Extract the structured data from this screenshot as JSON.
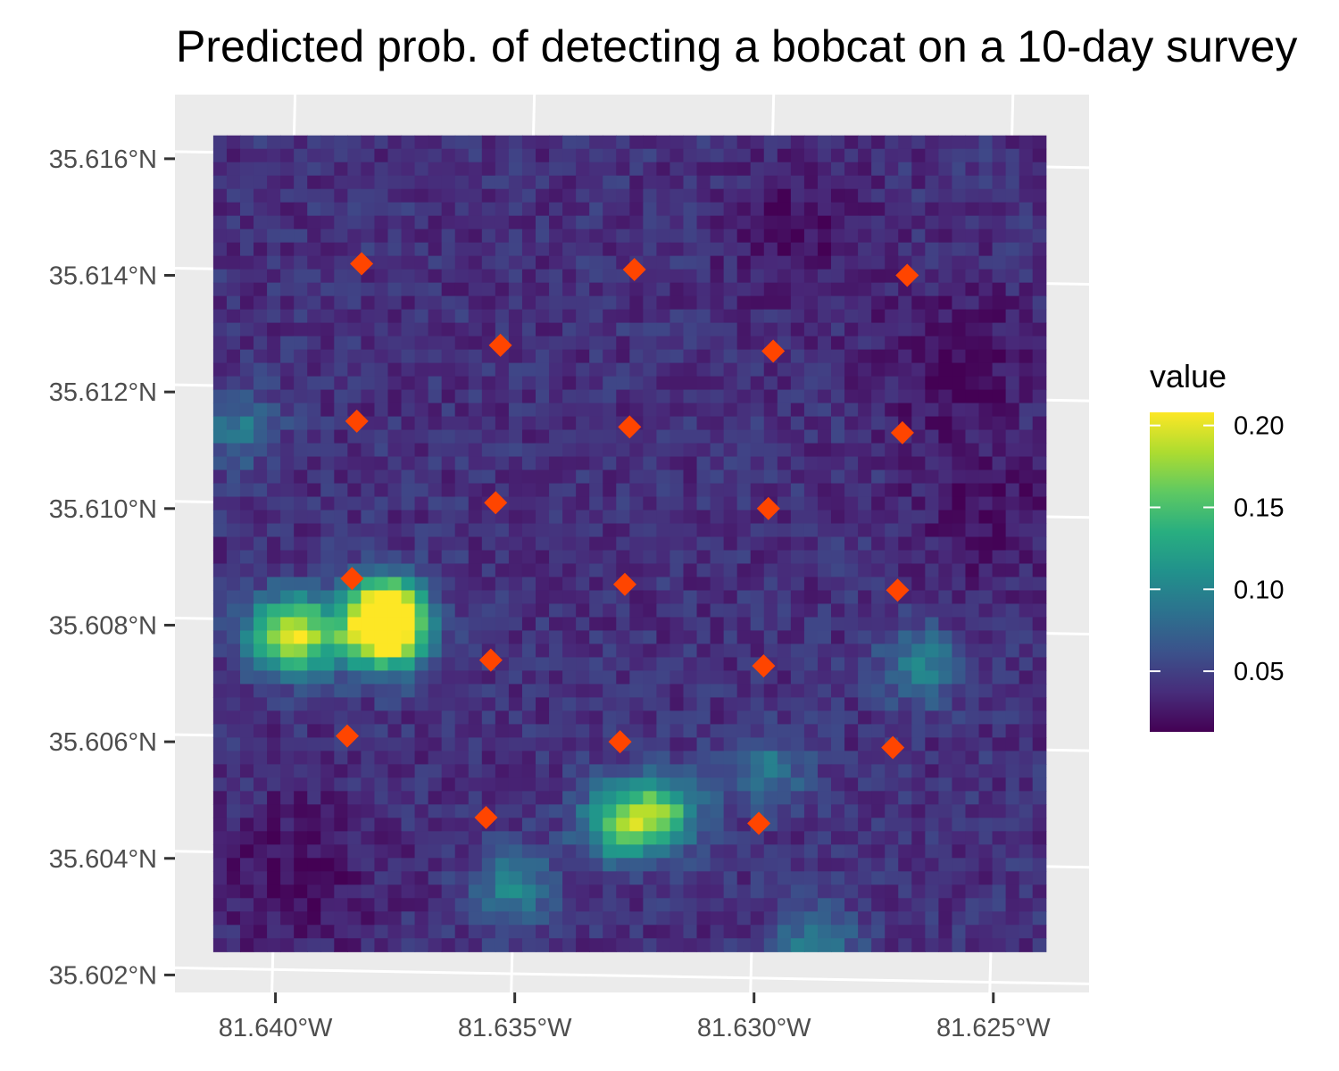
{
  "chart_data": {
    "type": "heatmap",
    "title": "Predicted prob. of detecting a bobcat on a 10-day survey",
    "xlabel": "",
    "ylabel": "",
    "x_ticks": [
      "81.640°W",
      "81.635°W",
      "81.630°W",
      "81.625°W"
    ],
    "x_tick_values": [
      -81.64,
      -81.635,
      -81.63,
      -81.625
    ],
    "y_ticks": [
      "35.616°N",
      "35.614°N",
      "35.612°N",
      "35.610°N",
      "35.608°N",
      "35.606°N",
      "35.604°N",
      "35.602°N"
    ],
    "y_tick_values": [
      35.616,
      35.614,
      35.612,
      35.61,
      35.608,
      35.606,
      35.604,
      35.602
    ],
    "x_range": [
      -81.6421,
      -81.623
    ],
    "y_range": [
      35.6017,
      35.6171
    ],
    "raster_extent": {
      "lon": [
        -81.6413,
        -81.6239
      ],
      "lat": [
        35.6024,
        35.6164
      ]
    },
    "grid": true,
    "colormap": "viridis",
    "legend": {
      "title": "value",
      "position": "right",
      "ticks": [
        "0.20",
        "0.15",
        "0.10",
        "0.05"
      ],
      "tick_values": [
        0.2,
        0.15,
        0.1,
        0.05
      ],
      "range": [
        0.013,
        0.208
      ]
    },
    "raster_estimated": {
      "background": 0.04,
      "hotspots": [
        {
          "lon": -81.6377,
          "lat": 35.6082,
          "value": 0.205
        },
        {
          "lon": -81.6377,
          "lat": 35.6078,
          "value": 0.17
        },
        {
          "lon": -81.6394,
          "lat": 35.6078,
          "value": 0.15
        },
        {
          "lon": -81.6328,
          "lat": 35.6046,
          "value": 0.15
        },
        {
          "lon": -81.6319,
          "lat": 35.6048,
          "value": 0.14
        },
        {
          "lon": -81.64,
          "lat": 35.6079,
          "value": 0.11
        },
        {
          "lon": -81.6408,
          "lat": 35.6114,
          "value": 0.09
        },
        {
          "lon": -81.6297,
          "lat": 35.6055,
          "value": 0.09
        },
        {
          "lon": -81.6265,
          "lat": 35.6073,
          "value": 0.1
        },
        {
          "lon": -81.635,
          "lat": 35.6035,
          "value": 0.1
        },
        {
          "lon": -81.6287,
          "lat": 35.6025,
          "value": 0.1
        }
      ],
      "low_areas": [
        {
          "lon": -81.6395,
          "lat": 35.6037,
          "value": 0.015
        },
        {
          "lon": -81.6258,
          "lat": 35.6125,
          "value": 0.015
        },
        {
          "lon": -81.6252,
          "lat": 35.6098,
          "value": 0.02
        },
        {
          "lon": -81.629,
          "lat": 35.6148,
          "value": 0.02
        }
      ]
    },
    "points": {
      "name": "",
      "color": "#FF4500",
      "marker": "diamond",
      "lon": [
        -81.6382,
        -81.6325,
        -81.6268,
        -81.6353,
        -81.6296,
        -81.6383,
        -81.6326,
        -81.6269,
        -81.6354,
        -81.6297,
        -81.6384,
        -81.6327,
        -81.627,
        -81.6355,
        -81.6298,
        -81.6385,
        -81.6328,
        -81.6271,
        -81.6356,
        -81.6299
      ],
      "lat": [
        35.6142,
        35.6141,
        35.614,
        35.6128,
        35.6127,
        35.6115,
        35.6114,
        35.6113,
        35.6101,
        35.61,
        35.6088,
        35.6087,
        35.6086,
        35.6074,
        35.6073,
        35.6061,
        35.606,
        35.6059,
        35.6047,
        35.6046
      ]
    }
  }
}
